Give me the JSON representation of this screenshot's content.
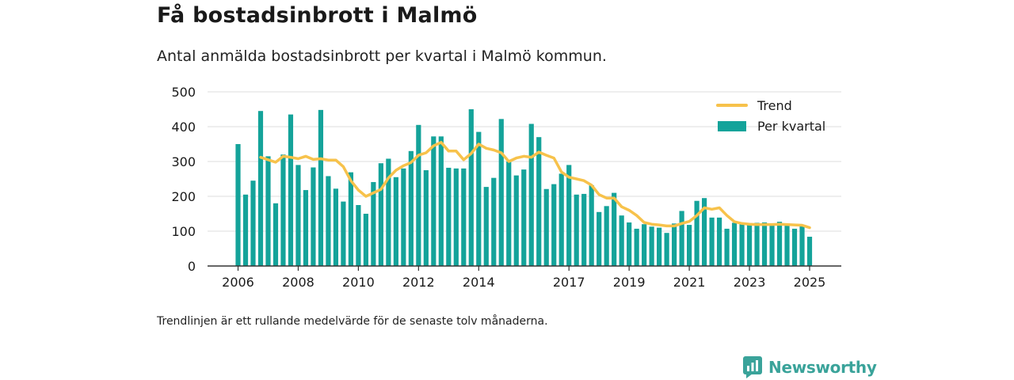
{
  "title": "Få bostadsinbrott i Malmö",
  "subtitle": "Antal anmälda bostadsinbrott per kvartal i Malmö kommun.",
  "note": "Trendlinjen är ett rullande medelvärde för de senaste tolv månaderna.",
  "brand": "Newsworthy",
  "colors": {
    "bar": "#14a39a",
    "trend": "#f7c24b",
    "grid": "#dddddd",
    "axis": "#333333",
    "brand": "#3aa39a"
  },
  "chart_data": {
    "type": "bar",
    "title": "Få bostadsinbrott i Malmö",
    "xlabel": "",
    "ylabel": "",
    "ylim": [
      0,
      500
    ],
    "yticks": [
      0,
      100,
      200,
      300,
      400,
      500
    ],
    "xticks": [
      "2006",
      "2008",
      "2010",
      "2012",
      "2014",
      "2017",
      "2019",
      "2021",
      "2023",
      "2025"
    ],
    "grid": true,
    "legend_position": "top-right",
    "series": [
      {
        "name": "Per kvartal",
        "type": "bar",
        "values": [
          350,
          205,
          245,
          445,
          315,
          180,
          320,
          435,
          290,
          218,
          283,
          448,
          258,
          222,
          185,
          269,
          175,
          150,
          241,
          295,
          308,
          255,
          280,
          330,
          405,
          275,
          372,
          372,
          282,
          280,
          280,
          450,
          385,
          227,
          253,
          422,
          300,
          260,
          277,
          408,
          370,
          221,
          235,
          265,
          290,
          205,
          207,
          232,
          155,
          172,
          210,
          145,
          125,
          107,
          120,
          113,
          110,
          95,
          122,
          158,
          118,
          187,
          195,
          139,
          139,
          107,
          124,
          123,
          123,
          124,
          125,
          117,
          127,
          118,
          107,
          118,
          84
        ]
      },
      {
        "name": "Trend",
        "type": "line",
        "values": [
          null,
          null,
          null,
          312,
          305,
          298,
          315,
          312,
          308,
          315,
          306,
          308,
          304,
          304,
          285,
          245,
          218,
          200,
          210,
          220,
          253,
          275,
          288,
          297,
          318,
          325,
          345,
          355,
          330,
          330,
          305,
          323,
          350,
          338,
          333,
          325,
          300,
          310,
          315,
          312,
          327,
          318,
          310,
          270,
          255,
          250,
          245,
          232,
          205,
          195,
          195,
          170,
          160,
          145,
          125,
          120,
          118,
          115,
          115,
          122,
          128,
          145,
          167,
          163,
          167,
          145,
          127,
          122,
          120,
          119,
          119,
          119,
          120,
          119,
          118,
          117,
          110
        ]
      }
    ]
  }
}
